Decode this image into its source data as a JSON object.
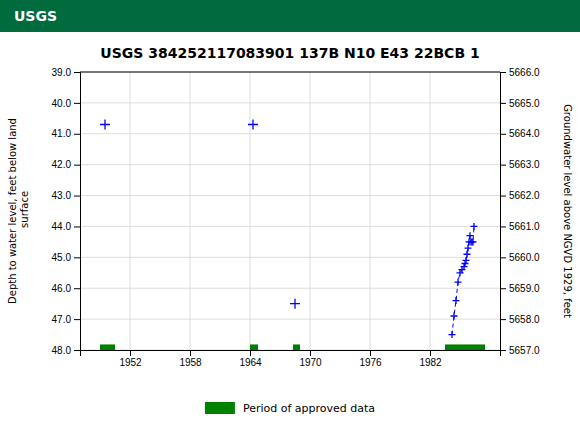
{
  "chart_data": {
    "type": "line",
    "title": "USGS 384252117083901 137B N10 E43 22BCB 1",
    "annotations": [
      {
        "text": "USGS"
      }
    ],
    "ylabel": "Depth to water level, feet below land\n surface",
    "y2label": "Groundwater level above NGVD 1929, feet",
    "xlim": [
      1947,
      1989
    ],
    "xticks": [
      1952,
      1958,
      1964,
      1970,
      1976,
      1982
    ],
    "ylim": [
      48.0,
      39.0
    ],
    "yticks": [
      {
        "value": 39.0,
        "label": "39.0"
      },
      {
        "value": 40.0,
        "label": "40.0"
      },
      {
        "value": 41.0,
        "label": "41.0"
      },
      {
        "value": 42.0,
        "label": "42.0"
      },
      {
        "value": 43.0,
        "label": "43.0"
      },
      {
        "value": 44.0,
        "label": "44.0"
      },
      {
        "value": 45.0,
        "label": "45.0"
      },
      {
        "value": 46.0,
        "label": "46.0"
      },
      {
        "value": 47.0,
        "label": "47.0"
      },
      {
        "value": 48.0,
        "label": "48.0"
      }
    ],
    "y2lim": [
      5657.0,
      5666.0
    ],
    "y2ticks": [
      {
        "value": 5657.0,
        "label": "5657.0"
      },
      {
        "value": 5658.0,
        "label": "5658.0"
      },
      {
        "value": 5659.0,
        "label": "5659.0"
      },
      {
        "value": 5660.0,
        "label": "5660.0"
      },
      {
        "value": 5661.0,
        "label": "5661.0"
      },
      {
        "value": 5662.0,
        "label": "5662.0"
      },
      {
        "value": 5663.0,
        "label": "5663.0"
      },
      {
        "value": 5664.0,
        "label": "5664.0"
      },
      {
        "value": 5665.0,
        "label": "5665.0"
      },
      {
        "value": 5666.0,
        "label": "5666.0"
      }
    ],
    "grid": true,
    "series": [
      {
        "type": "scatter",
        "color": "#0000FF",
        "marker": "plus",
        "x": [
          1949.5,
          1964.3,
          1968.5
        ],
        "values": [
          40.7,
          40.7,
          46.5
        ]
      },
      {
        "type": "line",
        "color": "#0000FF",
        "marker": "plus",
        "line_style": "dashed",
        "x": [
          1984.2,
          1984.4,
          1984.6,
          1984.8,
          1985.0,
          1985.2,
          1985.4,
          1985.5,
          1985.6,
          1985.7,
          1985.8,
          1985.9,
          1986.0,
          1986.1,
          1986.2,
          1986.3,
          1986.4
        ],
        "values": [
          47.5,
          46.9,
          46.4,
          45.8,
          45.5,
          45.4,
          45.3,
          45.2,
          45.1,
          44.9,
          44.7,
          44.5,
          44.3,
          44.5,
          44.5,
          44.5,
          44.0
        ]
      },
      {
        "type": "span",
        "name": "Period of approved data",
        "color": "#008000",
        "spans": [
          [
            1949.0,
            1950.5
          ],
          [
            1964.0,
            1964.8
          ],
          [
            1968.3,
            1969.0
          ],
          [
            1983.5,
            1987.5
          ]
        ],
        "y_range": [
          47.82,
          48.0
        ]
      }
    ]
  }
}
